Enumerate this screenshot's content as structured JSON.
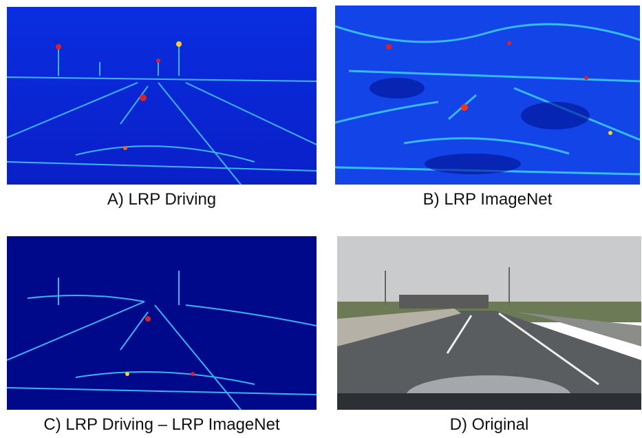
{
  "panels": [
    {
      "caption": "A) LRP Driving"
    },
    {
      "caption": "B) LRP ImageNet"
    },
    {
      "caption": "C) LRP Driving – LRP ImageNet"
    },
    {
      "caption": "D) Original"
    }
  ]
}
